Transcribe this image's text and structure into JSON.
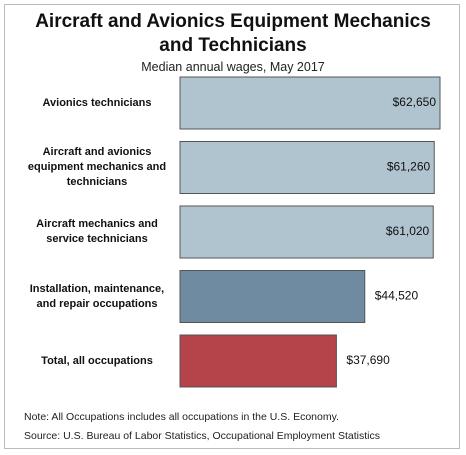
{
  "chart_data": {
    "type": "bar",
    "orientation": "horizontal",
    "title": "Aircraft and Avionics Equipment Mechanics and Technicians",
    "subtitle": "Median annual wages, May 2017",
    "categories": [
      "Avionics technicians",
      "Aircraft and avionics equipment mechanics and technicians",
      "Aircraft mechanics and service technicians",
      "Installation, maintenance, and repair occupations",
      "Total, all occupations"
    ],
    "values": [
      62650,
      61260,
      61020,
      44520,
      37690
    ],
    "value_labels": [
      "$62,650",
      "$61,260",
      "$61,020",
      "$44,520",
      "$37,690"
    ],
    "colors": [
      "#b0c4cf",
      "#b0c4cf",
      "#b0c4cf",
      "#6f8ba2",
      "#b5444a"
    ],
    "notes": [
      "Note: All Occupations includes all occupations in the U.S. Economy.",
      "Source: U.S. Bureau of Labor Statistics, Occupational Employment Statistics"
    ]
  }
}
